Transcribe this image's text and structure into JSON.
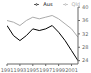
{
  "chart_data": {
    "type": "line",
    "x": [
      1991,
      1992,
      1993,
      1994,
      1995,
      1996,
      1997,
      1998,
      1999,
      2000,
      2001,
      2002
    ],
    "series": [
      {
        "name": "Qld",
        "color": "#aaaaaa",
        "values": [
          36.0,
          35.5,
          34.5,
          36.0,
          37.0,
          36.5,
          37.0,
          37.5,
          36.5,
          35.0,
          33.5,
          31.0
        ]
      },
      {
        "name": "Aus",
        "color": "#000000",
        "values": [
          34.5,
          31.5,
          30.0,
          31.5,
          33.5,
          33.0,
          33.5,
          34.5,
          32.5,
          30.0,
          27.0,
          24.0
        ]
      }
    ],
    "xlim": [
      1991,
      2002
    ],
    "ylim": [
      23,
      40
    ],
    "xticks": [
      1991,
      1993,
      1995,
      1997,
      1999,
      2001
    ],
    "yticks": [
      24,
      28,
      32,
      36,
      40
    ],
    "legend": "upper right",
    "grid": false
  }
}
